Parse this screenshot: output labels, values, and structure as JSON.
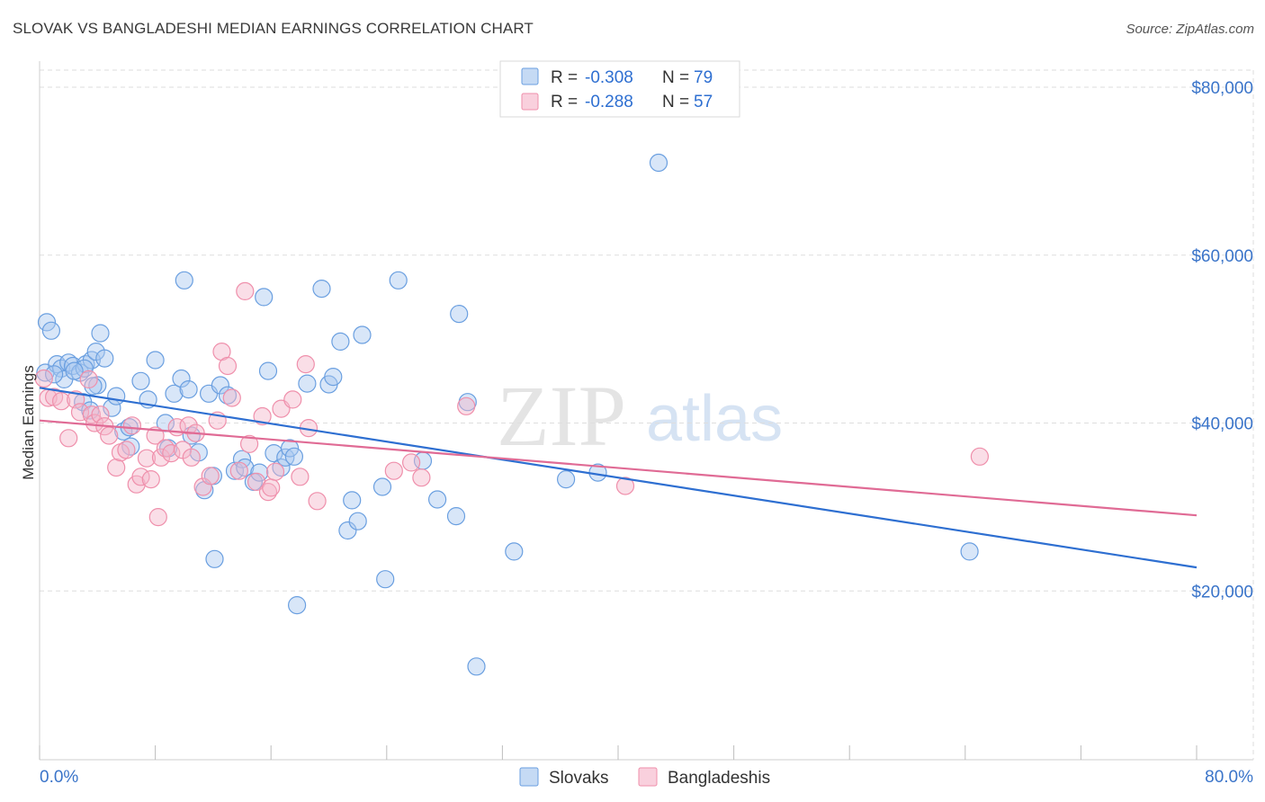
{
  "title": "SLOVAK VS BANGLADESHI MEDIAN EARNINGS CORRELATION CHART",
  "source": "Source: ZipAtlas.com",
  "watermark": {
    "zip": "ZIP",
    "atlas": "atlas"
  },
  "legend_box": {
    "rows": [
      {
        "r_label": "R = ",
        "r_value": "-0.308",
        "n_label": "N = ",
        "n_value": "79",
        "color": "#a9c8ef"
      },
      {
        "r_label": "R = ",
        "r_value": "-0.288",
        "n_label": "N = ",
        "n_value": "57",
        "color": "#f5b6c9"
      }
    ]
  },
  "bottom_legend": [
    {
      "label": "Slovaks",
      "color": "#a9c8ef"
    },
    {
      "label": "Bangladeshis",
      "color": "#f5b6c9"
    }
  ],
  "chart_data": {
    "type": "scatter",
    "title": "SLOVAK VS BANGLADESHI MEDIAN EARNINGS CORRELATION CHART",
    "xlabel": "",
    "ylabel": "Median Earnings",
    "xlim": [
      0,
      80
    ],
    "ylim": [
      0,
      82000
    ],
    "x_tick_labels": [
      "0.0%",
      "80.0%"
    ],
    "y_ticks": [
      20000,
      40000,
      60000,
      80000
    ],
    "y_tick_labels": [
      "$20,000",
      "$40,000",
      "$60,000",
      "$80,000"
    ],
    "grid": true,
    "legend_position": "top-center",
    "series": [
      {
        "name": "Slovaks",
        "color": "#6a9fe0",
        "fill": "#a9c8ef",
        "line_color": "#2e6fd1",
        "trend": {
          "x": [
            0,
            80
          ],
          "y": [
            44200,
            22800
          ]
        },
        "points": [
          [
            0.4,
            46000
          ],
          [
            0.5,
            52000
          ],
          [
            0.8,
            51000
          ],
          [
            1.2,
            47000
          ],
          [
            1.5,
            46500
          ],
          [
            1.7,
            45200
          ],
          [
            2.0,
            47200
          ],
          [
            2.3,
            46800
          ],
          [
            2.8,
            46000
          ],
          [
            3.2,
            47000
          ],
          [
            3.6,
            47500
          ],
          [
            3.9,
            48500
          ],
          [
            4.2,
            50700
          ],
          [
            4.5,
            47700
          ],
          [
            4.0,
            44500
          ],
          [
            3.7,
            44400
          ],
          [
            3.0,
            42500
          ],
          [
            3.5,
            41500
          ],
          [
            5.0,
            41800
          ],
          [
            5.8,
            39000
          ],
          [
            6.2,
            39500
          ],
          [
            6.3,
            37200
          ],
          [
            7.0,
            45000
          ],
          [
            7.5,
            42800
          ],
          [
            8.0,
            47500
          ],
          [
            8.7,
            40000
          ],
          [
            8.9,
            37000
          ],
          [
            9.3,
            43500
          ],
          [
            9.8,
            45300
          ],
          [
            10.0,
            57000
          ],
          [
            10.3,
            44000
          ],
          [
            10.5,
            38500
          ],
          [
            11.0,
            36500
          ],
          [
            11.4,
            32000
          ],
          [
            11.7,
            43500
          ],
          [
            12.0,
            33700
          ],
          [
            12.5,
            44500
          ],
          [
            13.0,
            43300
          ],
          [
            13.5,
            34300
          ],
          [
            14.0,
            35700
          ],
          [
            14.2,
            34700
          ],
          [
            14.8,
            33000
          ],
          [
            15.2,
            34100
          ],
          [
            15.5,
            55000
          ],
          [
            15.8,
            46200
          ],
          [
            16.2,
            36400
          ],
          [
            16.7,
            34700
          ],
          [
            17.0,
            35900
          ],
          [
            17.3,
            37000
          ],
          [
            17.6,
            36000
          ],
          [
            17.8,
            18300
          ],
          [
            18.5,
            44700
          ],
          [
            19.5,
            56000
          ],
          [
            20.0,
            44600
          ],
          [
            20.3,
            45500
          ],
          [
            20.8,
            49700
          ],
          [
            21.3,
            27200
          ],
          [
            21.6,
            30800
          ],
          [
            22.0,
            28300
          ],
          [
            22.3,
            50500
          ],
          [
            23.7,
            32400
          ],
          [
            23.9,
            21400
          ],
          [
            24.8,
            57000
          ],
          [
            26.5,
            35500
          ],
          [
            27.5,
            30900
          ],
          [
            28.8,
            28900
          ],
          [
            29.0,
            53000
          ],
          [
            29.6,
            42500
          ],
          [
            30.2,
            11000
          ],
          [
            32.8,
            24700
          ],
          [
            36.4,
            33300
          ],
          [
            38.6,
            34100
          ],
          [
            42.8,
            71000
          ],
          [
            12.1,
            23800
          ],
          [
            5.3,
            43200
          ],
          [
            64.3,
            24700
          ],
          [
            3.1,
            46500
          ],
          [
            1.0,
            45800
          ],
          [
            2.4,
            46200
          ]
        ]
      },
      {
        "name": "Bangladeshis",
        "color": "#ef8fab",
        "fill": "#f5b6c9",
        "line_color": "#e06b95",
        "trend": {
          "x": [
            0,
            80
          ],
          "y": [
            40300,
            29000
          ]
        },
        "points": [
          [
            0.3,
            45300
          ],
          [
            0.6,
            43000
          ],
          [
            1.0,
            43100
          ],
          [
            1.5,
            42600
          ],
          [
            2.0,
            38200
          ],
          [
            2.5,
            42800
          ],
          [
            2.8,
            41300
          ],
          [
            3.4,
            45200
          ],
          [
            3.6,
            41000
          ],
          [
            3.8,
            40000
          ],
          [
            4.2,
            41000
          ],
          [
            4.5,
            39600
          ],
          [
            4.8,
            38500
          ],
          [
            5.3,
            34700
          ],
          [
            5.6,
            36500
          ],
          [
            6.0,
            36800
          ],
          [
            6.4,
            39700
          ],
          [
            6.7,
            32700
          ],
          [
            7.0,
            33600
          ],
          [
            7.4,
            35800
          ],
          [
            7.7,
            33300
          ],
          [
            8.0,
            38500
          ],
          [
            8.2,
            28800
          ],
          [
            8.4,
            35900
          ],
          [
            8.7,
            37000
          ],
          [
            9.1,
            36400
          ],
          [
            9.5,
            39500
          ],
          [
            9.9,
            36800
          ],
          [
            10.3,
            39700
          ],
          [
            10.5,
            35900
          ],
          [
            10.8,
            38800
          ],
          [
            11.3,
            32400
          ],
          [
            11.8,
            33700
          ],
          [
            12.3,
            40300
          ],
          [
            12.6,
            48500
          ],
          [
            13.0,
            46800
          ],
          [
            13.3,
            43000
          ],
          [
            13.8,
            34300
          ],
          [
            14.2,
            55700
          ],
          [
            14.5,
            37500
          ],
          [
            15.0,
            33000
          ],
          [
            15.4,
            40800
          ],
          [
            15.8,
            31800
          ],
          [
            16.0,
            32300
          ],
          [
            16.3,
            34200
          ],
          [
            16.7,
            41700
          ],
          [
            17.5,
            42800
          ],
          [
            18.0,
            33600
          ],
          [
            18.4,
            47000
          ],
          [
            18.6,
            39400
          ],
          [
            19.2,
            30700
          ],
          [
            24.5,
            34300
          ],
          [
            25.7,
            35300
          ],
          [
            26.4,
            33500
          ],
          [
            29.5,
            42000
          ],
          [
            40.5,
            32500
          ],
          [
            65.0,
            36000
          ]
        ]
      }
    ]
  }
}
